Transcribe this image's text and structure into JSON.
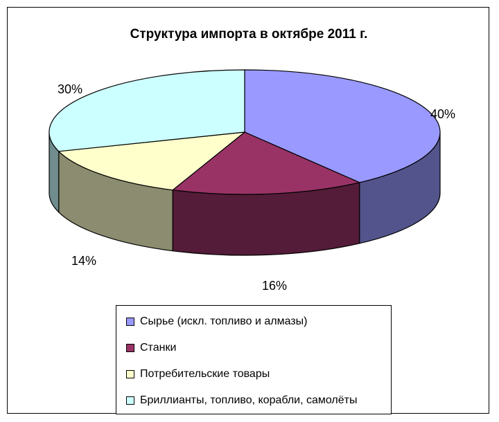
{
  "chart_data": {
    "type": "pie",
    "title": "Структура импорта в октябре 2011 г.",
    "slices": [
      {
        "label": "Сырье (искл. топливо и алмазы)",
        "value": 40,
        "value_label": "40%",
        "color": "#9999FF"
      },
      {
        "label": "Станки",
        "value": 16,
        "value_label": "16%",
        "color": "#993366"
      },
      {
        "label": "Потребительские товары",
        "value": 14,
        "value_label": "14%",
        "color": "#FFFFCC"
      },
      {
        "label": "Бриллианты, топливо, корабли, самолёты",
        "value": 30,
        "value_label": "30%",
        "color": "#CCFFFF"
      }
    ],
    "legend_position": "bottom",
    "three_d": true
  }
}
